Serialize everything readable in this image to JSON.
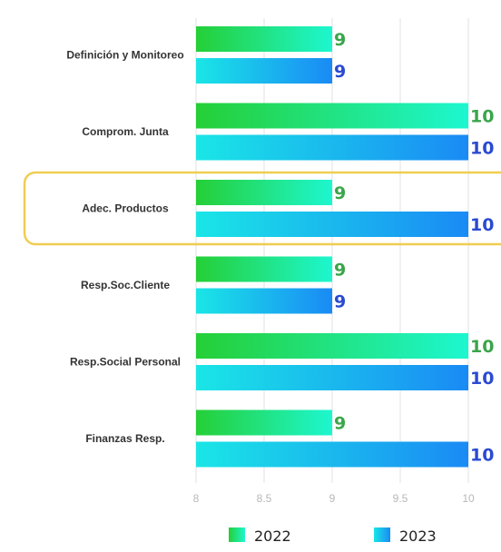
{
  "chart_data": {
    "type": "bar",
    "orientation": "horizontal",
    "categories": [
      "Definición y Monitoreo",
      "Comprom. Junta",
      "Adec. Productos",
      "Resp.Soc.Cliente",
      "Resp.Social Personal",
      "Finanzas Resp."
    ],
    "series": [
      {
        "name": "2022",
        "values": [
          9,
          10,
          9,
          9,
          10,
          9
        ]
      },
      {
        "name": "2023",
        "values": [
          9,
          10,
          10,
          9,
          10,
          10
        ]
      }
    ],
    "xlim": [
      8,
      10
    ],
    "xticks": [
      "8",
      "8.5",
      "9",
      "9.5",
      "10"
    ],
    "highlighted_category": "Adec. Productos",
    "legend_position": "bottom",
    "colors": {
      "series_2022": [
        "#25cf36",
        "#1df7d0"
      ],
      "series_2023": [
        "#1ae6e6",
        "#1a8af5"
      ],
      "value_label_2022": "#3aa54a",
      "value_label_2023": "#2a4ad1",
      "highlight": "#f0cd52",
      "grid": "#e2e2e2"
    }
  }
}
